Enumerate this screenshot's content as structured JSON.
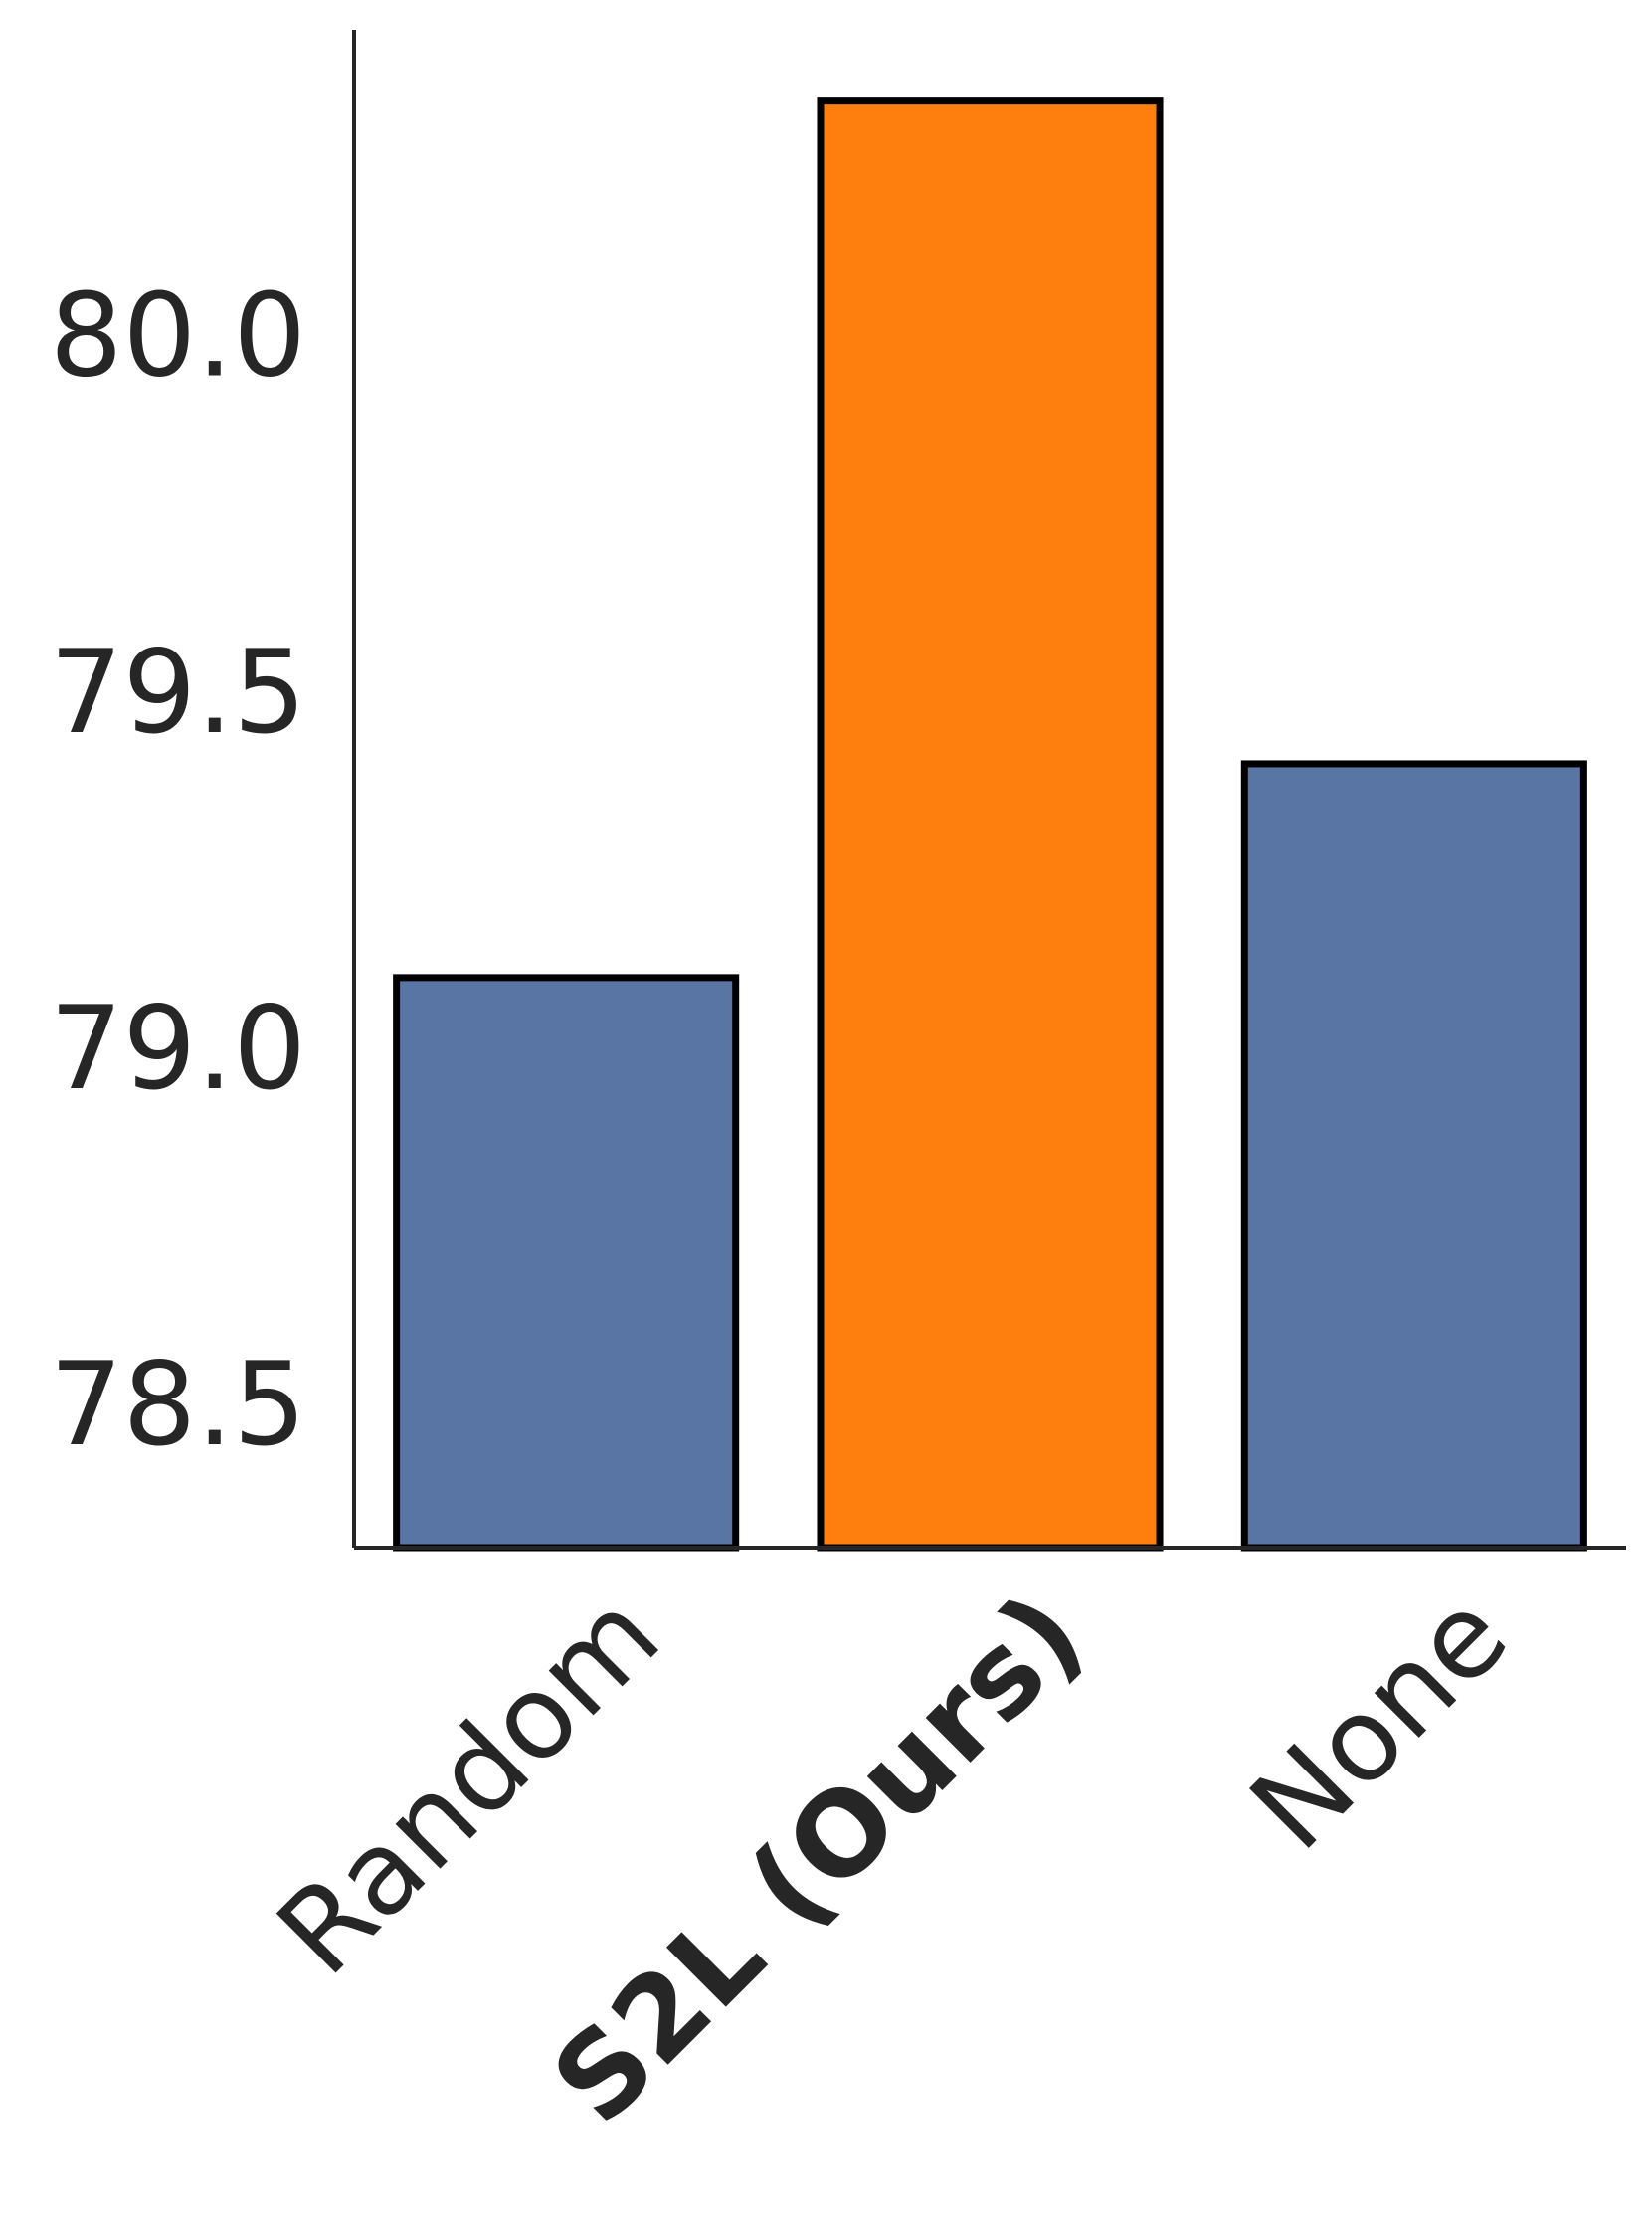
{
  "chart_data": {
    "type": "bar",
    "categories": [
      "Random",
      "S2L (Ours)",
      "None"
    ],
    "category_bold": [
      false,
      true,
      false
    ],
    "values": [
      79.1,
      80.33,
      79.4
    ],
    "bar_colors": [
      "#5975a4",
      "#ff7f0e",
      "#5975a4"
    ],
    "edge_color": "#000000",
    "axis_color": "#262626",
    "ylim": [
      78.3,
      80.43
    ],
    "yticks": [
      78.5,
      79.0,
      79.5,
      80.0
    ],
    "ytick_labels": [
      "78.5",
      "79.0",
      "79.5",
      "80.0"
    ],
    "title": "",
    "xlabel": "",
    "ylabel": "",
    "grid": false,
    "spines": [
      "left",
      "bottom"
    ]
  }
}
